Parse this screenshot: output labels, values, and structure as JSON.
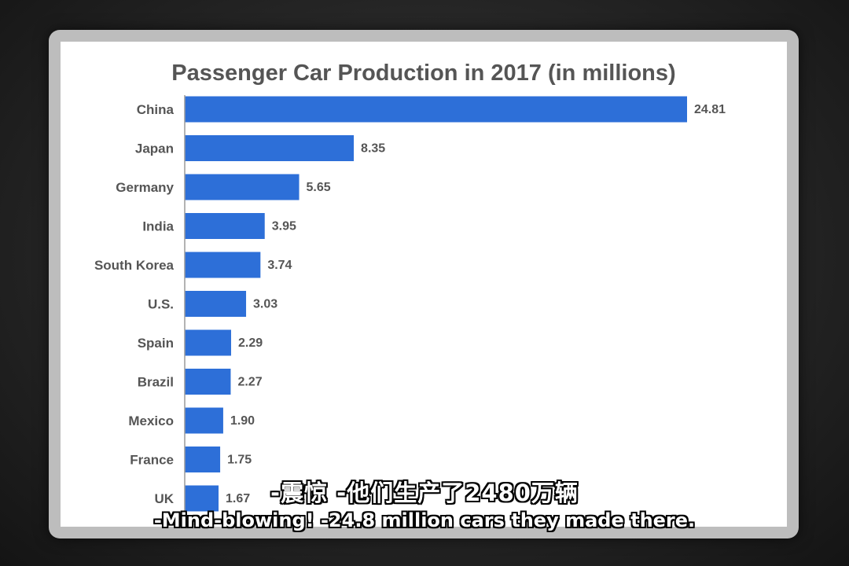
{
  "chart_data": {
    "type": "bar",
    "orientation": "horizontal",
    "title": "Passenger Car Production in 2017 (in millions)",
    "categories": [
      "China",
      "Japan",
      "Germany",
      "India",
      "South Korea",
      "U.S.",
      "Spain",
      "Brazil",
      "Mexico",
      "France",
      "UK"
    ],
    "values": [
      24.81,
      8.35,
      5.65,
      3.95,
      3.74,
      3.03,
      2.29,
      2.27,
      1.9,
      1.75,
      1.67
    ],
    "value_labels": [
      "24.81",
      "8.35",
      "5.65",
      "3.95",
      "3.74",
      "3.03",
      "2.29",
      "2.27",
      "1.90",
      "1.75",
      "1.67"
    ],
    "xlabel": "",
    "ylabel": "",
    "xlim": [
      0,
      24.81
    ],
    "grid": false,
    "bar_color": "#2d6fd8"
  },
  "subtitles": {
    "chinese": "-震惊 -他们生产了2480万辆",
    "english": "-Mind-blowing! -24.8 million cars they made there."
  },
  "colors": {
    "background": "#222222",
    "frame": "#bdbdbd",
    "panel": "#ffffff",
    "text": "#555555",
    "bar": "#2d6fd8"
  }
}
